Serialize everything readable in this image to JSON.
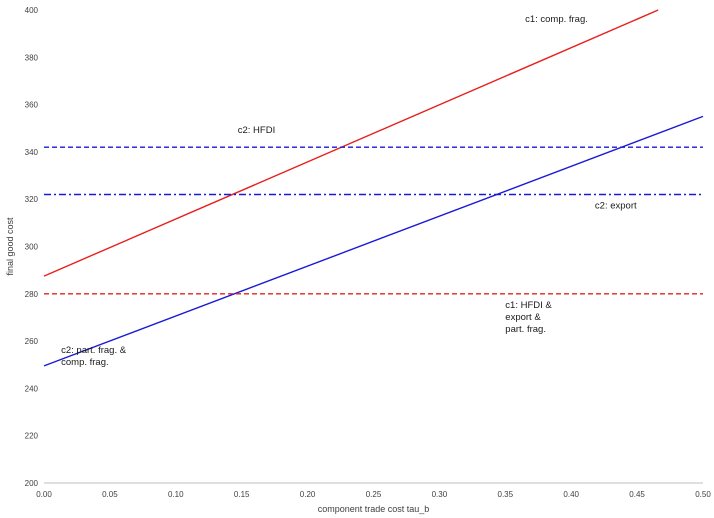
{
  "chart_data": {
    "type": "line",
    "title": "",
    "xlabel": "component trade cost tau_b",
    "ylabel": "final good cost",
    "xlim": [
      0,
      0.5
    ],
    "ylim": [
      200,
      400
    ],
    "grid": false,
    "x_ticks": [
      "0.00",
      "0.05",
      "0.10",
      "0.15",
      "0.20",
      "0.25",
      "0.30",
      "0.35",
      "0.40",
      "0.45",
      "0.50"
    ],
    "y_ticks": [
      "200",
      "220",
      "240",
      "260",
      "280",
      "300",
      "320",
      "340",
      "360",
      "380",
      "400"
    ],
    "series": [
      {
        "x": [
          0,
          0.466
        ],
        "y": [
          287.5,
          400
        ],
        "color": "#e8201c",
        "dash": "solid"
      },
      {
        "x": [
          0,
          0.5
        ],
        "y": [
          249.5,
          355
        ],
        "color": "#1a1ad6",
        "dash": "solid"
      },
      {
        "x": [
          0,
          0.5
        ],
        "y": [
          342,
          342
        ],
        "color": "#1a1ad6",
        "dash": "dashed"
      },
      {
        "x": [
          0,
          0.5
        ],
        "y": [
          322,
          322
        ],
        "color": "#1a1ad6",
        "dash": "dashdot"
      },
      {
        "x": [
          0,
          0.5
        ],
        "y": [
          280,
          280
        ],
        "color": "#e8201c",
        "dash": "dashed"
      }
    ],
    "annotations": [
      {
        "lines": [
          "c1: comp. frag."
        ],
        "x": 0.365,
        "y": 395
      },
      {
        "lines": [
          "c2: HFDI"
        ],
        "x": 0.147,
        "y": 348
      },
      {
        "lines": [
          "c2: export"
        ],
        "x": 0.418,
        "y": 316
      },
      {
        "lines": [
          "c1: HFDI &",
          "export &",
          "part. frag."
        ],
        "x": 0.35,
        "y": 274
      },
      {
        "lines": [
          "c2: part. frag. &",
          "comp. frag."
        ],
        "x": 0.013,
        "y": 255
      }
    ]
  }
}
